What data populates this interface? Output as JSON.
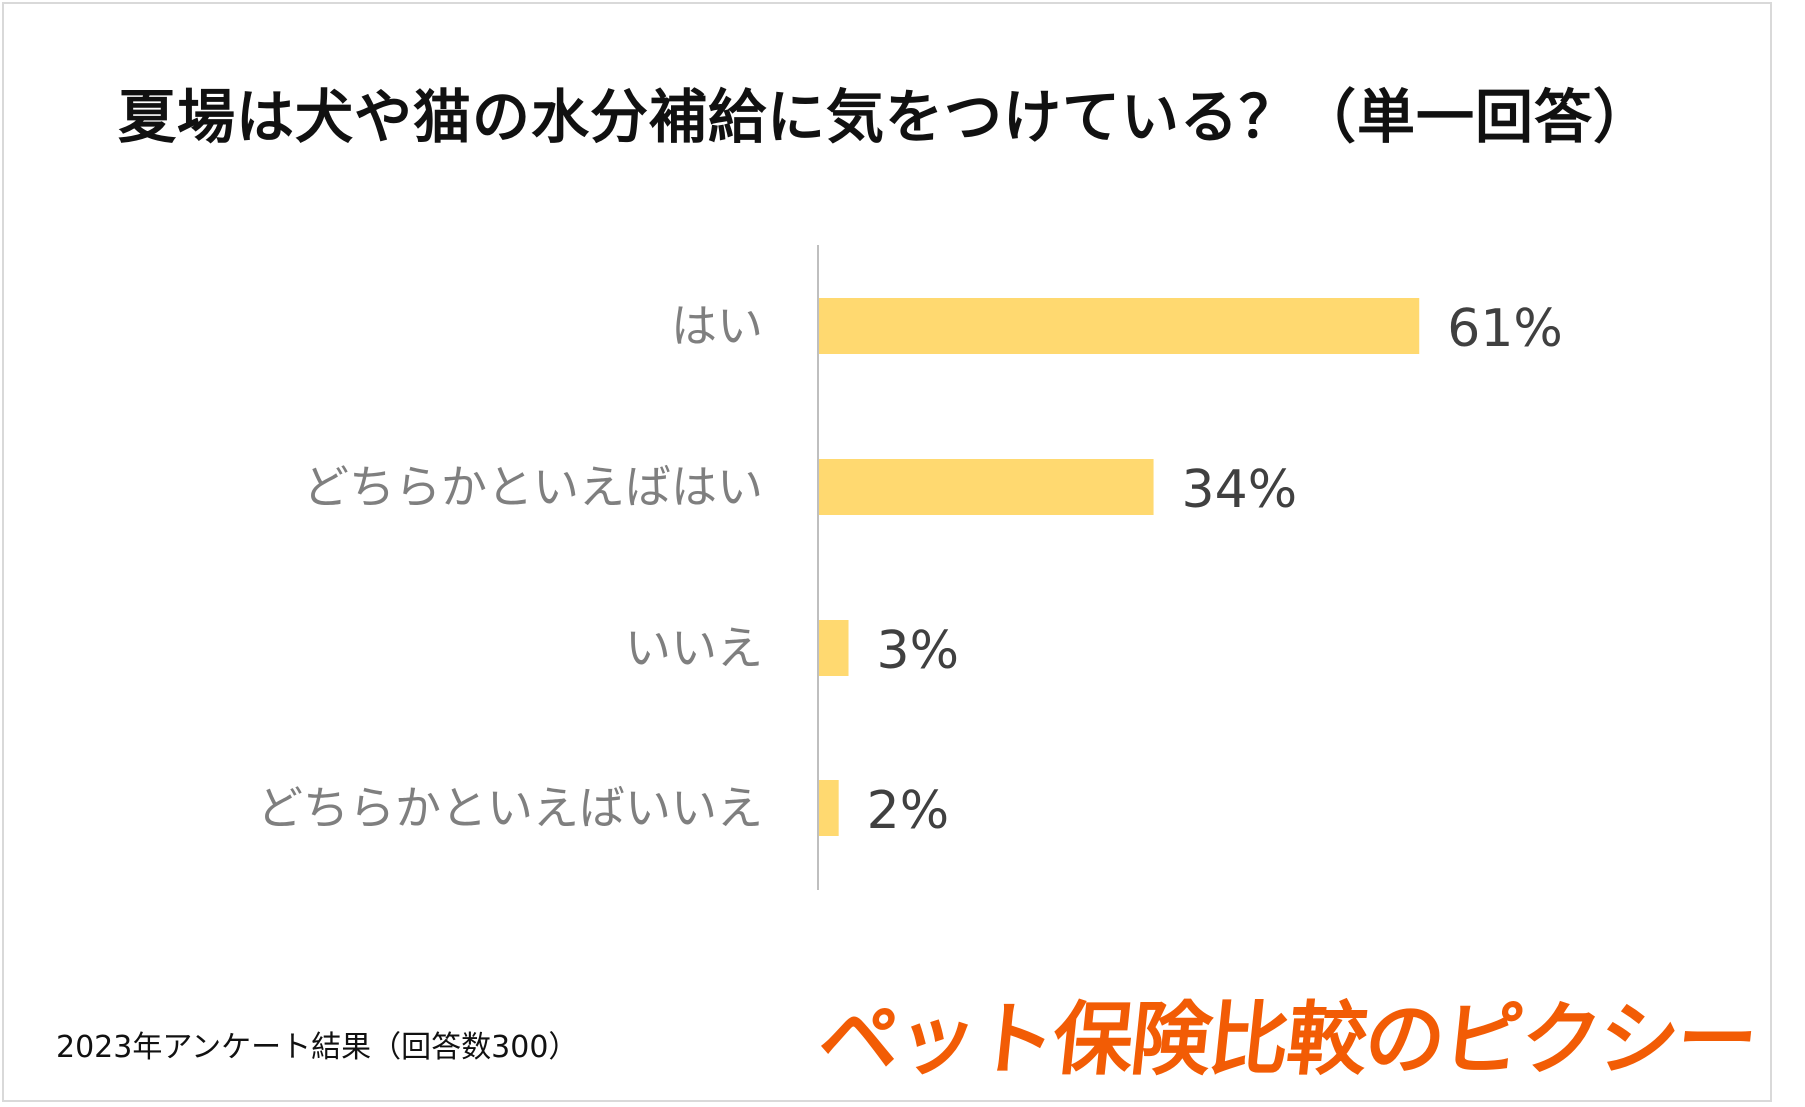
{
  "title": "夏場は犬や猫の水分補給に気をつけている？（単一回答）",
  "footnote": "2023年アンケート結果（回答数300）",
  "brand": "ペット保険比較のピクシー",
  "colors": {
    "bar": "#ffd970",
    "axis": "#bfbfbf",
    "category_label": "#7f7f7f",
    "value_label": "#404040",
    "brand": "#f25c05"
  },
  "chart_data": {
    "type": "bar",
    "orientation": "horizontal",
    "categories": [
      "はい",
      "どちらかといえばはい",
      "いいえ",
      "どちらかといえばいいえ"
    ],
    "values": [
      61,
      34,
      3,
      2
    ],
    "value_labels": [
      "61%",
      "34%",
      "3%",
      "2%"
    ],
    "xlim": [
      0,
      100
    ],
    "grid": false,
    "legend": "none"
  }
}
